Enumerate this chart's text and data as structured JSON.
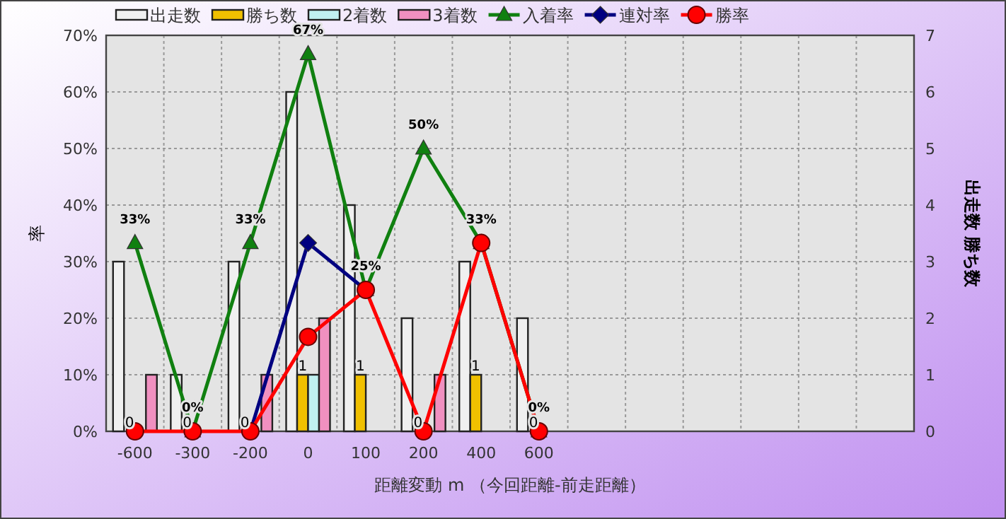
{
  "chart_data": {
    "type": "bar",
    "categories": [
      "-600",
      "-300",
      "-200",
      "0",
      "100",
      "200",
      "400",
      "600",
      null,
      null,
      null,
      null,
      null,
      null
    ],
    "xlabel": "距離変動 m （今回距離-前走距離）",
    "ylabel": "率",
    "y2label": "出走数 勝ち数",
    "ylim": [
      0,
      70
    ],
    "yticks": [
      {
        "value": 0,
        "label": "0%"
      },
      {
        "value": 10,
        "label": "10%"
      },
      {
        "value": 20,
        "label": "20%"
      },
      {
        "value": 30,
        "label": "30%"
      },
      {
        "value": 40,
        "label": "40%"
      },
      {
        "value": 50,
        "label": "50%"
      },
      {
        "value": 60,
        "label": "60%"
      },
      {
        "value": 70,
        "label": "70%"
      }
    ],
    "y2lim": [
      0,
      7
    ],
    "y2ticks": [
      0,
      1,
      2,
      3,
      4,
      5,
      6,
      7
    ],
    "grid": true,
    "legend": "top",
    "series": [
      {
        "name": "出走数",
        "color": "#f0f0f0",
        "axis": "y2",
        "values": [
          3,
          1,
          3,
          6,
          4,
          2,
          3,
          2,
          null,
          null,
          null,
          null,
          null,
          null
        ]
      },
      {
        "name": "勝ち数",
        "color": "#f0c000",
        "axis": "y2",
        "values": [
          0,
          0,
          0,
          1,
          1,
          0,
          1,
          0,
          null,
          null,
          null,
          null,
          null,
          null
        ],
        "value_labels": [
          "0",
          "0",
          "0",
          "1",
          "1",
          "0",
          "1",
          "0",
          null,
          null,
          null,
          null,
          null,
          null
        ]
      },
      {
        "name": "2着数",
        "color": "#c0f0f0",
        "axis": "y2",
        "values": [
          0,
          0,
          0,
          1,
          0,
          0,
          0,
          0,
          null,
          null,
          null,
          null,
          null,
          null
        ]
      },
      {
        "name": "3着数",
        "color": "#f090c0",
        "axis": "y2",
        "values": [
          1,
          0,
          1,
          2,
          0,
          1,
          0,
          0,
          null,
          null,
          null,
          null,
          null,
          null
        ]
      },
      {
        "name": "入着率",
        "type": "line",
        "color": "#108010",
        "marker": "triangle",
        "values": [
          33.3,
          0,
          33.3,
          66.7,
          25,
          50,
          33.3,
          0,
          null,
          null,
          null,
          null,
          null,
          null
        ],
        "value_labels": [
          "33%",
          "0%",
          "33%",
          "67%",
          "25%",
          "50%",
          "33%",
          "0%",
          null,
          null,
          null,
          null,
          null,
          null
        ]
      },
      {
        "name": "連対率",
        "type": "line",
        "color": "#000080",
        "marker": "diamond",
        "values": [
          null,
          null,
          0,
          33.3,
          25,
          null,
          null,
          null,
          null,
          null,
          null,
          null,
          null,
          null
        ]
      },
      {
        "name": "勝率",
        "type": "line",
        "color": "#ff0000",
        "marker": "circle",
        "values": [
          0,
          0,
          0,
          16.7,
          25,
          0,
          33.3,
          0,
          null,
          null,
          null,
          null,
          null,
          null
        ]
      }
    ]
  }
}
